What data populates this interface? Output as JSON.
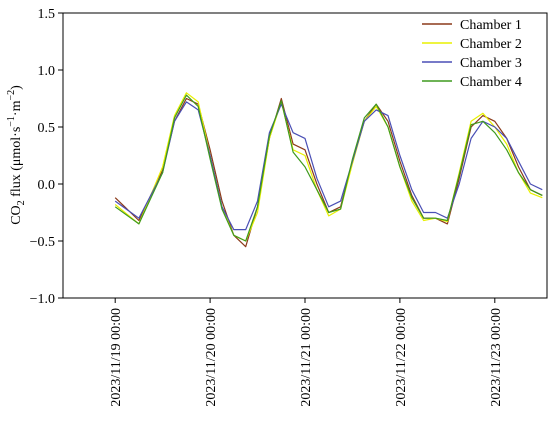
{
  "chart_data": {
    "type": "line",
    "title": "",
    "xlabel": "",
    "ylabel": "CO₂ flux (μmol·s⁻¹·m⁻²)",
    "ylabel_parts": {
      "pre": "CO",
      "sub": "2",
      "mid": " flux (μmol·s",
      "sup1": "−1",
      "dot": "·m",
      "sup2": "−2",
      "post": ")"
    },
    "ylim": [
      -1.0,
      1.5
    ],
    "yticks": [
      -1.0,
      -0.5,
      0.0,
      0.5,
      1.0,
      1.5
    ],
    "ytick_labels": [
      "−1.0",
      "−0.5",
      "0.0",
      "0.5",
      "1.0",
      "1.5"
    ],
    "xlim_days": [
      -0.55,
      4.55
    ],
    "xticks": [
      "2023/11/19 00:00",
      "2023/11/20 00:00",
      "2023/11/21 00:00",
      "2023/11/22 00:00",
      "2023/11/23 00:00"
    ],
    "legend_position": "top-right",
    "grid": false,
    "x_hours": [
      0,
      6,
      12,
      15,
      18,
      21,
      24,
      27,
      30,
      33,
      36,
      39,
      42,
      45,
      48,
      51,
      54,
      57,
      60,
      63,
      66,
      69,
      72,
      75,
      78,
      81,
      84,
      87,
      90,
      93,
      96,
      99,
      102,
      105,
      108
    ],
    "series": [
      {
        "name": "Chamber 1",
        "color": "#8B3A1A",
        "values": [
          -0.12,
          -0.32,
          0.12,
          0.55,
          0.75,
          0.7,
          0.3,
          -0.15,
          -0.45,
          -0.55,
          -0.2,
          0.4,
          0.75,
          0.35,
          0.3,
          0.0,
          -0.25,
          -0.2,
          0.2,
          0.55,
          0.7,
          0.55,
          0.2,
          -0.1,
          -0.3,
          -0.3,
          -0.35,
          0.05,
          0.5,
          0.6,
          0.55,
          0.4,
          0.15,
          -0.05,
          -0.1
        ]
      },
      {
        "name": "Chamber 2",
        "color": "#E8F000",
        "values": [
          -0.18,
          -0.35,
          0.15,
          0.6,
          0.8,
          0.72,
          0.25,
          -0.2,
          -0.45,
          -0.5,
          -0.25,
          0.4,
          0.72,
          0.3,
          0.25,
          -0.05,
          -0.28,
          -0.22,
          0.18,
          0.55,
          0.68,
          0.5,
          0.15,
          -0.15,
          -0.32,
          -0.3,
          -0.33,
          0.1,
          0.55,
          0.62,
          0.5,
          0.35,
          0.1,
          -0.08,
          -0.12
        ]
      },
      {
        "name": "Chamber 3",
        "color": "#4A4FB5",
        "values": [
          -0.15,
          -0.3,
          0.1,
          0.55,
          0.72,
          0.65,
          0.25,
          -0.2,
          -0.4,
          -0.4,
          -0.15,
          0.45,
          0.7,
          0.45,
          0.4,
          0.05,
          -0.2,
          -0.15,
          0.2,
          0.55,
          0.65,
          0.6,
          0.25,
          -0.05,
          -0.25,
          -0.25,
          -0.3,
          0.0,
          0.4,
          0.55,
          0.5,
          0.4,
          0.2,
          0.0,
          -0.05
        ]
      },
      {
        "name": "Chamber 4",
        "color": "#3E9A1E",
        "values": [
          -0.2,
          -0.35,
          0.1,
          0.58,
          0.78,
          0.68,
          0.22,
          -0.22,
          -0.45,
          -0.5,
          -0.2,
          0.42,
          0.73,
          0.28,
          0.15,
          -0.05,
          -0.25,
          -0.22,
          0.22,
          0.58,
          0.7,
          0.5,
          0.15,
          -0.12,
          -0.3,
          -0.3,
          -0.32,
          0.08,
          0.52,
          0.55,
          0.45,
          0.3,
          0.1,
          -0.05,
          -0.1
        ]
      }
    ]
  }
}
